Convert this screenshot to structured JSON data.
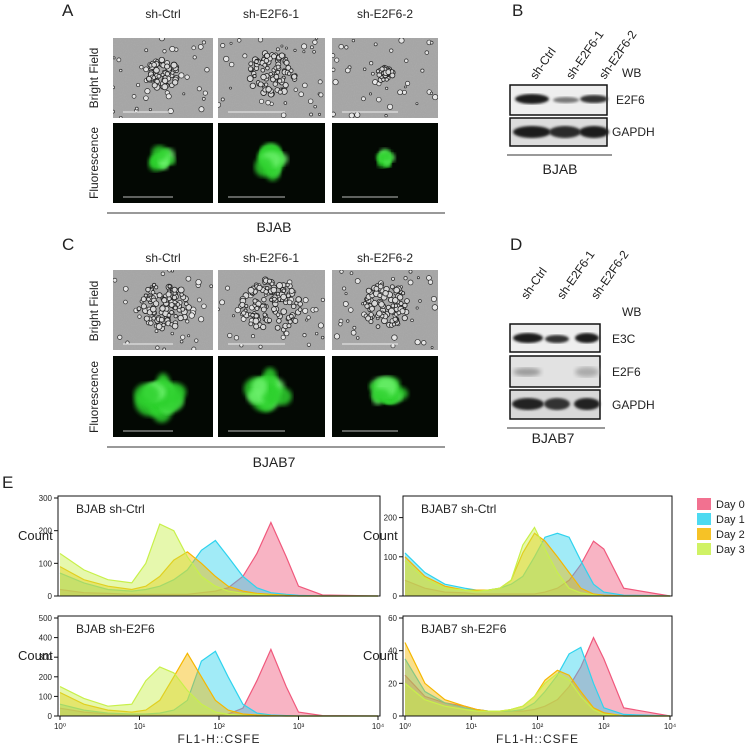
{
  "panels": {
    "A": {
      "label": "A",
      "columns": [
        "sh-Ctrl",
        "sh-E2F6-1",
        "sh-E2F6-2"
      ],
      "rows": [
        "Bright Field",
        "Fluorescence"
      ],
      "cell_line": "BJAB"
    },
    "B": {
      "label": "B",
      "lanes": [
        "sh-Ctrl",
        "sh-E2F6-1",
        "sh-E2F6-2"
      ],
      "header": "WB",
      "bands": [
        "E2F6",
        "GAPDH"
      ],
      "cell_line": "BJAB"
    },
    "C": {
      "label": "C",
      "columns": [
        "sh-Ctrl",
        "sh-E2F6-1",
        "sh-E2F6-2"
      ],
      "rows": [
        "Bright Field",
        "Fluorescence"
      ],
      "cell_line": "BJAB7"
    },
    "D": {
      "label": "D",
      "lanes": [
        "sh-Ctrl",
        "sh-E2F6-1",
        "sh-E2F6-2"
      ],
      "header": "WB",
      "bands": [
        "E3C",
        "E2F6",
        "GAPDH"
      ],
      "cell_line": "BJAB7"
    },
    "E": {
      "label": "E"
    }
  },
  "chart_data": [
    {
      "type": "area",
      "title": "BJAB sh-Ctrl",
      "ylabel": "Count",
      "xlog": true,
      "xlim": [
        1,
        10000
      ],
      "ylim": [
        0,
        300
      ],
      "yticks": [
        0,
        100,
        200,
        300
      ],
      "x": [
        1,
        2,
        4,
        8,
        12,
        18,
        27,
        40,
        60,
        90,
        130,
        200,
        300,
        450,
        700,
        1000,
        2000,
        10000
      ],
      "series": [
        {
          "name": "Day 0",
          "color": "#f0587c",
          "values": [
            20,
            10,
            8,
            5,
            5,
            5,
            5,
            5,
            10,
            15,
            25,
            60,
            130,
            225,
            120,
            30,
            3,
            0
          ]
        },
        {
          "name": "Day 1",
          "color": "#2ed3ee",
          "values": [
            70,
            40,
            20,
            15,
            20,
            30,
            50,
            80,
            140,
            170,
            120,
            60,
            25,
            10,
            5,
            2,
            0,
            0
          ]
        },
        {
          "name": "Day 2",
          "color": "#f5b700",
          "values": [
            90,
            50,
            30,
            20,
            30,
            60,
            110,
            135,
            100,
            60,
            30,
            15,
            8,
            5,
            2,
            0,
            0,
            0
          ]
        },
        {
          "name": "Day 3",
          "color": "#c8f04a",
          "values": [
            130,
            80,
            50,
            40,
            100,
            220,
            200,
            120,
            60,
            30,
            15,
            8,
            5,
            2,
            0,
            0,
            0,
            0
          ]
        }
      ]
    },
    {
      "type": "area",
      "title": "BJAB7 sh-Ctrl",
      "ylabel": "Count",
      "xlog": true,
      "xlim": [
        1,
        10000
      ],
      "ylim": [
        0,
        250
      ],
      "yticks": [
        0,
        100,
        200
      ],
      "x": [
        1,
        2,
        4,
        8,
        12,
        18,
        27,
        40,
        60,
        90,
        130,
        200,
        300,
        450,
        700,
        1000,
        2000,
        10000
      ],
      "series": [
        {
          "values": [
            40,
            20,
            10,
            8,
            5,
            5,
            5,
            5,
            5,
            5,
            10,
            20,
            40,
            80,
            140,
            120,
            20,
            0
          ]
        },
        {
          "values": [
            110,
            60,
            30,
            20,
            15,
            15,
            20,
            30,
            50,
            100,
            150,
            160,
            150,
            90,
            30,
            10,
            2,
            0
          ]
        },
        {
          "values": [
            100,
            50,
            25,
            15,
            15,
            15,
            20,
            40,
            110,
            160,
            140,
            100,
            60,
            20,
            5,
            2,
            0,
            0
          ]
        },
        {
          "values": [
            90,
            45,
            20,
            15,
            12,
            15,
            20,
            40,
            130,
            175,
            120,
            60,
            20,
            8,
            3,
            0,
            0,
            0
          ]
        }
      ]
    },
    {
      "type": "area",
      "title": "BJAB sh-E2F6",
      "ylabel": "Count",
      "xlabel": "FL1-H::CSFE",
      "xlog": true,
      "xlim": [
        1,
        10000
      ],
      "xticks": [
        {
          "value": 1,
          "label": "10⁰"
        },
        {
          "value": 10,
          "label": "10¹"
        },
        {
          "value": 100,
          "label": "10²"
        },
        {
          "value": 1000,
          "label": "10³"
        },
        {
          "value": 10000,
          "label": "10⁴"
        }
      ],
      "ylim": [
        0,
        500
      ],
      "yticks": [
        0,
        100,
        200,
        300,
        400,
        500
      ],
      "x": [
        1,
        2,
        4,
        8,
        12,
        18,
        27,
        40,
        60,
        90,
        130,
        200,
        300,
        450,
        700,
        1000,
        2000,
        10000
      ],
      "series": [
        {
          "values": [
            40,
            20,
            10,
            8,
            5,
            5,
            5,
            5,
            5,
            5,
            10,
            40,
            180,
            340,
            150,
            20,
            2,
            0
          ]
        },
        {
          "values": [
            60,
            30,
            15,
            10,
            10,
            15,
            30,
            80,
            280,
            330,
            200,
            60,
            15,
            5,
            2,
            0,
            0,
            0
          ]
        },
        {
          "values": [
            120,
            60,
            30,
            20,
            30,
            80,
            200,
            320,
            200,
            80,
            30,
            10,
            5,
            2,
            0,
            0,
            0,
            0
          ]
        },
        {
          "values": [
            150,
            90,
            50,
            60,
            180,
            250,
            220,
            130,
            60,
            20,
            8,
            3,
            0,
            0,
            0,
            0,
            0,
            0
          ]
        }
      ]
    },
    {
      "type": "area",
      "title": "BJAB7 sh-E2F6",
      "ylabel": "Count",
      "xlabel": "FL1-H::CSFE",
      "xlog": true,
      "xlim": [
        1,
        10000
      ],
      "xticks": [
        {
          "value": 1,
          "label": "10⁰"
        },
        {
          "value": 10,
          "label": "10¹"
        },
        {
          "value": 100,
          "label": "10²"
        },
        {
          "value": 1000,
          "label": "10³"
        },
        {
          "value": 10000,
          "label": "10⁴"
        }
      ],
      "ylim": [
        0,
        60
      ],
      "yticks": [
        0,
        20,
        40,
        60
      ],
      "x": [
        1,
        2,
        4,
        8,
        12,
        18,
        27,
        40,
        60,
        90,
        130,
        200,
        300,
        450,
        700,
        1000,
        2000,
        10000
      ],
      "series": [
        {
          "values": [
            25,
            12,
            8,
            6,
            4,
            3,
            3,
            3,
            3,
            4,
            6,
            10,
            18,
            30,
            48,
            35,
            5,
            0
          ]
        },
        {
          "values": [
            35,
            15,
            8,
            5,
            4,
            3,
            3,
            3,
            4,
            8,
            15,
            25,
            38,
            42,
            20,
            5,
            1,
            0
          ]
        },
        {
          "values": [
            45,
            20,
            10,
            6,
            4,
            3,
            3,
            4,
            6,
            12,
            22,
            28,
            25,
            15,
            5,
            2,
            0,
            0
          ]
        },
        {
          "values": [
            20,
            10,
            6,
            4,
            3,
            3,
            3,
            4,
            6,
            12,
            20,
            26,
            22,
            12,
            4,
            1,
            0,
            0
          ]
        }
      ]
    }
  ]
}
